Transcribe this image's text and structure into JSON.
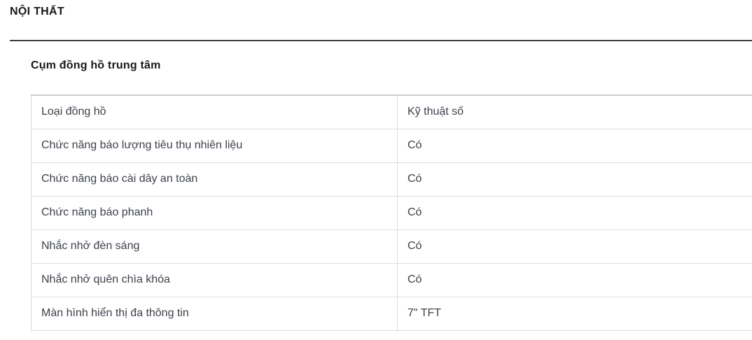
{
  "page": {
    "section_title": "NỘI THẤT",
    "subsection_title": "Cụm đồng hồ trung tâm"
  },
  "spec_table": {
    "rows": [
      {
        "label": "Loại đồng hồ",
        "value": "Kỹ thuật số"
      },
      {
        "label": "Chức năng báo lượng tiêu thụ nhiên liệu",
        "value": "Có"
      },
      {
        "label": "Chức năng báo cài dây an toàn",
        "value": "Có"
      },
      {
        "label": "Chức năng báo phanh",
        "value": "Có"
      },
      {
        "label": "Nhắc nhở đèn sáng",
        "value": "Có"
      },
      {
        "label": "Nhắc nhở quên chìa khóa",
        "value": "Có"
      },
      {
        "label": "Màn hình hiển thị đa thông tin",
        "value": "7\" TFT"
      }
    ]
  },
  "colors": {
    "background": "#ffffff",
    "heading_text": "#17191d",
    "divider": "#3a3c40",
    "table_text": "#3d414b",
    "table_border": "#dcdde1",
    "table_border_top": "#c9cbd3"
  }
}
